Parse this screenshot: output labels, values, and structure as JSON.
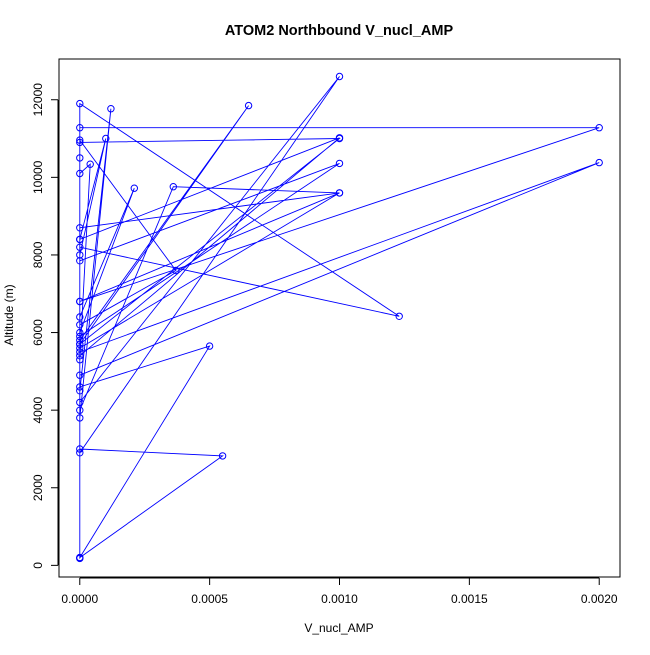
{
  "chart_data": {
    "type": "line",
    "title": "ATOM2 Northbound V_nucl_AMP",
    "xlabel": "V_nucl_AMP",
    "ylabel": "Altitude (m)",
    "xlim": [
      -8e-05,
      0.00208
    ],
    "ylim": [
      -300,
      13050
    ],
    "x_ticks": [
      0,
      0.0005,
      0.001,
      0.0015,
      0.002
    ],
    "x_tick_labels": [
      "0.0000",
      "0.0005",
      "0.0010",
      "0.0015",
      "0.0020"
    ],
    "y_ticks": [
      0,
      2000,
      4000,
      6000,
      8000,
      10000,
      12000
    ],
    "y_tick_labels": [
      "0",
      "2000",
      "4000",
      "6000",
      "8000",
      "10000",
      "12000"
    ],
    "grid": false,
    "marker": "open-circle",
    "color": "#0000ff",
    "series": [
      {
        "x": [
          0,
          0,
          0.00055,
          0,
          0,
          0.0005,
          0,
          0,
          0.00123,
          0,
          0,
          0.002,
          0,
          0,
          0.00037,
          0,
          0,
          0.00065,
          0,
          0,
          0.001,
          0,
          0,
          0.00021,
          0,
          0,
          0.0001,
          0,
          0,
          0.00012,
          0,
          0,
          0.001,
          0,
          0,
          0.001,
          0,
          0,
          0.00036,
          0.001,
          0,
          0,
          0.001,
          0,
          0,
          4e-05,
          0,
          0,
          0.002,
          0,
          0,
          0.001,
          0,
          0
        ],
        "y": [
          180,
          200,
          2820,
          3000,
          200,
          5650,
          4600,
          8200,
          6420,
          11900,
          4900,
          10380,
          5500,
          6200,
          7600,
          10960,
          5700,
          11850,
          5800,
          4200,
          12600,
          2900,
          6400,
          9720,
          6000,
          8000,
          11000,
          8400,
          3800,
          11770,
          4500,
          7850,
          10360,
          5900,
          5600,
          9600,
          8700,
          4000,
          9760,
          9600,
          6800,
          5400,
          11020,
          8400,
          10100,
          10340,
          5300,
          6800,
          11280,
          11280,
          10900,
          11000,
          5700,
          10500
        ]
      }
    ]
  }
}
